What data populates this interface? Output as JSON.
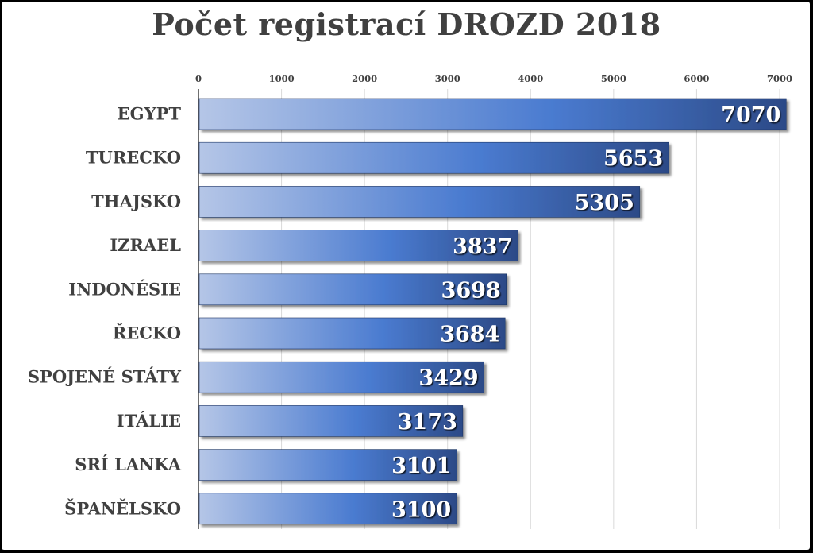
{
  "chart_data": {
    "type": "bar",
    "orientation": "horizontal",
    "title": "Počet registrací DROZD 2018",
    "categories": [
      "EGYPT",
      "TURECKO",
      "THAJSKO",
      "IZRAEL",
      "INDONÉSIE",
      "ŘECKO",
      "SPOJENÉ STÁTY",
      "ITÁLIE",
      "SRÍ LANKA",
      "ŠPANĚLSKO"
    ],
    "values": [
      7070,
      5653,
      5305,
      3837,
      3698,
      3684,
      3429,
      3173,
      3101,
      3100
    ],
    "xlim": [
      0,
      7000
    ],
    "xticks": [
      "0",
      "1000",
      "2000",
      "3000",
      "4000",
      "5000",
      "6000",
      "7000"
    ],
    "axis_position": "top",
    "grid": true,
    "data_labels": true,
    "legend": "none",
    "colors": {
      "bar_start": "#b5c6e7",
      "bar_mid": "#4a7bd0",
      "bar_end": "#2c4a87",
      "text": "#404040",
      "background": "#ffffff",
      "frame": "#000000"
    }
  }
}
